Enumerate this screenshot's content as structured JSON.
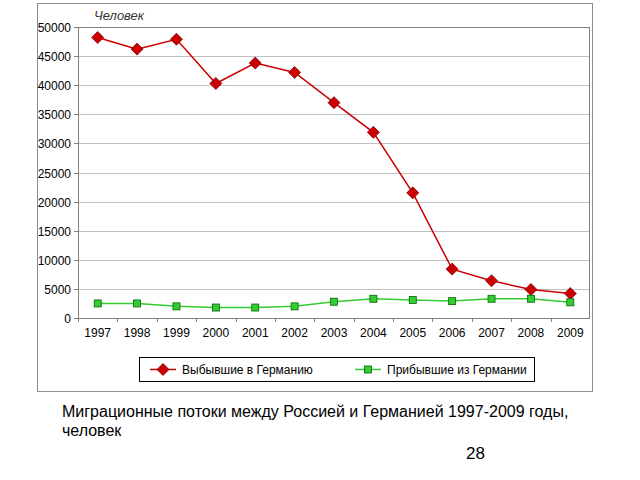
{
  "chart_data": {
    "type": "line",
    "title": "Миграционные потоки между Россией и Германией 1997-2009 годы, человек",
    "y_label": "Человек",
    "annotations": [
      "28"
    ],
    "categories": [
      "1997",
      "1998",
      "1999",
      "2000",
      "2001",
      "2002",
      "2003",
      "2004",
      "2005",
      "2006",
      "2007",
      "2008",
      "2009"
    ],
    "series": [
      {
        "name": "Выбывшие в Германию",
        "color": "#cc0000",
        "marker": "diamond",
        "values": [
          48200,
          46200,
          47900,
          40300,
          43800,
          42200,
          37000,
          31900,
          21500,
          8400,
          6400,
          4900,
          4200
        ]
      },
      {
        "name": "Прибывшие из Германии",
        "color": "#33cc33",
        "marker": "square",
        "values": [
          2500,
          2500,
          2000,
          1800,
          1800,
          2000,
          2800,
          3300,
          3100,
          2900,
          3300,
          3300,
          2700
        ]
      }
    ],
    "ylim": [
      0,
      50000
    ],
    "yticks": [
      0,
      5000,
      10000,
      15000,
      20000,
      25000,
      30000,
      35000,
      40000,
      45000,
      50000
    ],
    "grid": true,
    "legend": "bottom"
  }
}
